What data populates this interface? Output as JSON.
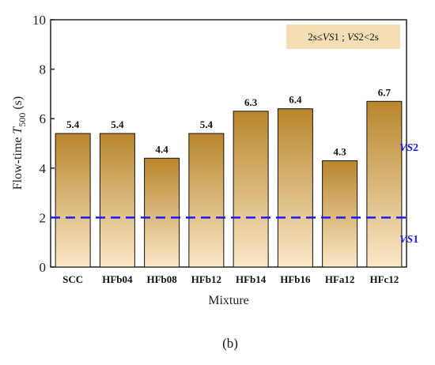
{
  "chart_data": {
    "type": "bar",
    "categories": [
      "SCC",
      "HFb04",
      "HFb08",
      "HFb12",
      "HFb14",
      "HFb16",
      "HFa12",
      "HFc12"
    ],
    "values": [
      5.4,
      5.4,
      4.4,
      5.4,
      6.3,
      6.4,
      4.3,
      6.7
    ],
    "value_labels": [
      "5.4",
      "5.4",
      "4.4",
      "5.4",
      "6.3",
      "6.4",
      "4.3",
      "6.7"
    ],
    "xlabel": "Mixture",
    "ylabel_text": "Flow-time ",
    "ylabel_var": "T",
    "ylabel_sub": "500",
    "ylabel_unit": " (s)",
    "ylim": [
      0,
      10
    ],
    "yticks": [
      "0",
      "2",
      "4",
      "6",
      "8",
      "10"
    ],
    "threshold": {
      "value": 2,
      "color": "#1a1aff"
    },
    "vs_labels": {
      "upper_var": "VS",
      "upper_num": "2",
      "lower_var": "VS",
      "lower_num": "1"
    },
    "legend": {
      "p1": "2s≤",
      "p2": "VS",
      "p3": "1 ; ",
      "p4": "VS",
      "p5": "2<2s",
      "bg_color": "#f5deb3"
    },
    "bar_gradient": {
      "top": "#b8862b",
      "bottom": "#fbe8c8"
    },
    "grid": false
  },
  "caption": "(b)"
}
